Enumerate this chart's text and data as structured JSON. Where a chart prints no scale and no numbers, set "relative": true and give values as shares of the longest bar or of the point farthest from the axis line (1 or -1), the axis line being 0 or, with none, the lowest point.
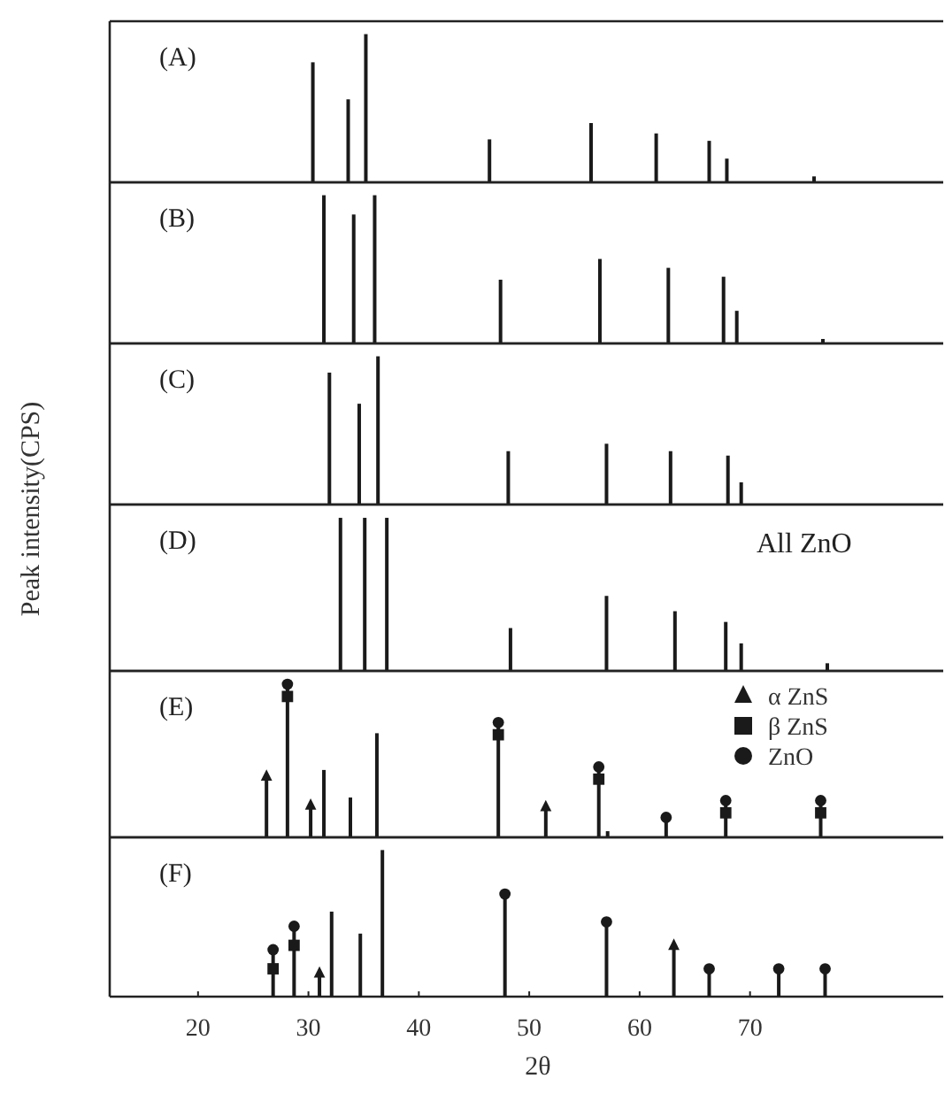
{
  "chart_data": [
    {
      "type": "bar",
      "title": "(A)",
      "xlim": [
        12,
        87.5
      ],
      "relative": true,
      "tick_labels": false,
      "series": [
        {
          "color": "#1a1a1a",
          "x": [
            30.4,
            33.6,
            35.2,
            46.4,
            55.6,
            61.5,
            66.3,
            67.9,
            75.8
          ],
          "values": [
            0.81,
            0.56,
            1,
            0.29,
            0.4,
            0.33,
            0.28,
            0.16,
            0.04
          ]
        }
      ]
    },
    {
      "type": "bar",
      "title": "(B)",
      "xlim": [
        12,
        87.5
      ],
      "relative": true,
      "tick_labels": false,
      "series": [
        {
          "color": "#1a1a1a",
          "x": [
            31.4,
            34.1,
            36.0,
            47.4,
            56.4,
            62.6,
            67.6,
            68.8,
            76.6
          ],
          "values": [
            1,
            0.87,
            1,
            0.43,
            0.57,
            0.51,
            0.45,
            0.22,
            0.03
          ]
        }
      ]
    },
    {
      "type": "bar",
      "title": "(C)",
      "xlim": [
        12,
        87.5
      ],
      "relative": true,
      "tick_labels": false,
      "series": [
        {
          "color": "#1a1a1a",
          "x": [
            31.9,
            34.6,
            36.3,
            48.1,
            57.0,
            62.8,
            68.0,
            69.2
          ],
          "values": [
            0.89,
            0.68,
            1,
            0.36,
            0.41,
            0.36,
            0.33,
            0.15
          ]
        }
      ]
    },
    {
      "type": "bar",
      "title": "(D)",
      "ylabel": "Peak intensity(CPS)",
      "xlim": [
        12,
        87.5
      ],
      "relative": true,
      "tick_labels": false,
      "annotations": [
        "All ZnO"
      ],
      "series": [
        {
          "color": "#1a1a1a",
          "x": [
            32.9,
            35.1,
            37.1,
            48.3,
            57.0,
            63.2,
            67.8,
            69.2,
            77.0
          ],
          "values": [
            1,
            1,
            1,
            0.28,
            0.49,
            0.39,
            0.32,
            0.18,
            0.05
          ]
        }
      ]
    },
    {
      "type": "bar",
      "title": "(E)",
      "xlim": [
        12,
        87.5
      ],
      "relative": true,
      "tick_labels": false,
      "legend": "top right",
      "series": [
        {
          "color": "#1a1a1a",
          "x": [
            26.2,
            28.1,
            30.2,
            31.4,
            33.8,
            36.2,
            47.2,
            51.5,
            56.3,
            57.1,
            62.4,
            67.8,
            76.4
          ],
          "values": [
            0.4,
            1,
            0.21,
            0.44,
            0.26,
            0.68,
            0.75,
            0.2,
            0.46,
            0.04,
            0.13,
            0.24,
            0.24
          ]
        },
        {
          "type": "scatter",
          "name": "α ZnS",
          "marker": "triangle",
          "color": "#1a1a1a",
          "x": [
            26.2,
            30.2,
            51.5
          ],
          "values": [
            0.4,
            0.21,
            0.2
          ]
        },
        {
          "type": "scatter",
          "name": "β ZnS",
          "marker": "square",
          "color": "#1a1a1a",
          "x": [
            28.1,
            47.2,
            56.3,
            67.8,
            76.4
          ],
          "values": [
            0.92,
            0.67,
            0.38,
            0.16,
            0.16
          ]
        },
        {
          "type": "scatter",
          "name": "ZnO",
          "marker": "circle",
          "color": "#1a1a1a",
          "x": [
            28.1,
            47.2,
            56.3,
            62.4,
            67.8,
            76.4
          ],
          "values": [
            1,
            0.75,
            0.46,
            0.13,
            0.24,
            0.24
          ]
        }
      ]
    },
    {
      "type": "bar",
      "title": "(F)",
      "xlabel": "2θ",
      "xlim": [
        12,
        87.5
      ],
      "xticks": [
        20,
        30,
        40,
        50,
        60,
        70
      ],
      "relative": true,
      "tick_labels": "x",
      "series": [
        {
          "color": "#1a1a1a",
          "x": [
            26.8,
            28.7,
            31.0,
            32.1,
            34.7,
            36.7,
            47.8,
            57.0,
            63.1,
            66.3,
            72.6,
            76.8
          ],
          "values": [
            0.32,
            0.48,
            0.16,
            0.58,
            0.43,
            1,
            0.7,
            0.51,
            0.35,
            0.19,
            0.19,
            0.19
          ]
        },
        {
          "type": "scatter",
          "marker": "triangle",
          "color": "#1a1a1a",
          "x": [
            31.0,
            63.1
          ],
          "values": [
            0.16,
            0.35
          ]
        },
        {
          "type": "scatter",
          "marker": "square",
          "color": "#1a1a1a",
          "x": [
            26.8,
            28.7
          ],
          "values": [
            0.19,
            0.35
          ]
        },
        {
          "type": "scatter",
          "marker": "circle",
          "color": "#1a1a1a",
          "x": [
            26.8,
            28.7,
            47.8,
            57.0,
            66.3,
            72.6,
            76.8
          ],
          "values": [
            0.32,
            0.48,
            0.7,
            0.51,
            0.19,
            0.19,
            0.19
          ]
        }
      ]
    }
  ]
}
